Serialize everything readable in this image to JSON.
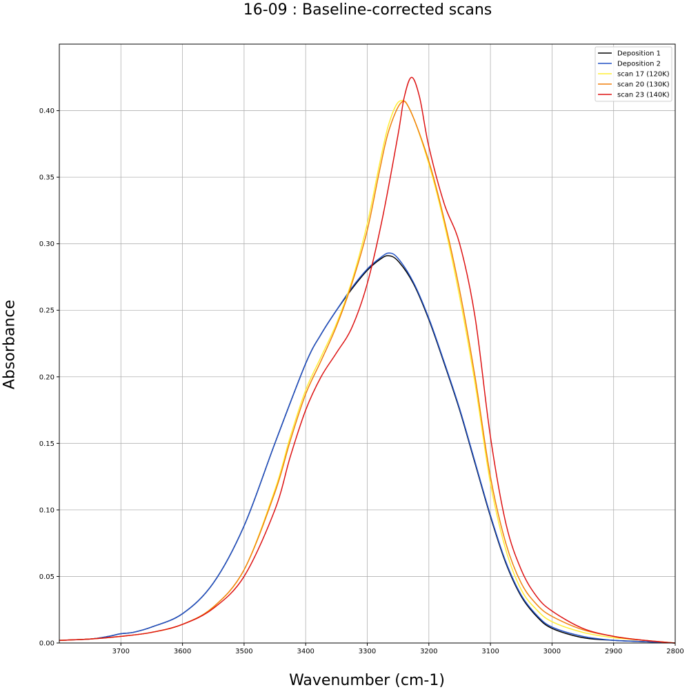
{
  "chart_data": {
    "type": "line",
    "title": "16-09 : Baseline-corrected scans",
    "xlabel": "Wavenumber (cm-1)",
    "ylabel": "Absorbance",
    "xlim": [
      3800,
      2800
    ],
    "ylim": [
      0,
      0.45
    ],
    "x_reversed": true,
    "grid": true,
    "legend_position": "top-right",
    "xticks": [
      3700,
      3600,
      3500,
      3400,
      3300,
      3200,
      3100,
      3000,
      2900,
      2800
    ],
    "yticks": [
      0.0,
      0.05,
      0.1,
      0.15,
      0.2,
      0.25,
      0.3,
      0.35,
      0.4
    ],
    "ytick_labels": [
      "0.00",
      "0.05",
      "0.10",
      "0.15",
      "0.20",
      "0.25",
      "0.30",
      "0.35",
      "0.40"
    ],
    "series": [
      {
        "name": "Deposition 1",
        "color": "#000000",
        "x": [
          3800,
          3750,
          3720,
          3700,
          3680,
          3650,
          3600,
          3550,
          3500,
          3450,
          3400,
          3375,
          3350,
          3325,
          3300,
          3280,
          3266,
          3250,
          3225,
          3200,
          3175,
          3150,
          3125,
          3100,
          3075,
          3050,
          3025,
          3000,
          2950,
          2900,
          2850,
          2800
        ],
        "y": [
          0.002,
          0.003,
          0.005,
          0.007,
          0.008,
          0.012,
          0.022,
          0.045,
          0.088,
          0.15,
          0.21,
          0.232,
          0.25,
          0.266,
          0.28,
          0.288,
          0.291,
          0.287,
          0.27,
          0.243,
          0.21,
          0.175,
          0.135,
          0.095,
          0.06,
          0.035,
          0.02,
          0.011,
          0.004,
          0.002,
          0.001,
          0.0
        ]
      },
      {
        "name": "Deposition 2",
        "color": "#1f4fc4",
        "x": [
          3800,
          3750,
          3720,
          3700,
          3680,
          3650,
          3600,
          3550,
          3500,
          3450,
          3400,
          3375,
          3350,
          3325,
          3300,
          3280,
          3265,
          3250,
          3225,
          3200,
          3175,
          3150,
          3125,
          3100,
          3075,
          3050,
          3025,
          3000,
          2950,
          2900,
          2850,
          2800
        ],
        "y": [
          0.002,
          0.003,
          0.005,
          0.007,
          0.008,
          0.012,
          0.022,
          0.045,
          0.088,
          0.15,
          0.21,
          0.232,
          0.25,
          0.267,
          0.281,
          0.289,
          0.293,
          0.289,
          0.271,
          0.244,
          0.211,
          0.176,
          0.136,
          0.096,
          0.061,
          0.036,
          0.021,
          0.012,
          0.005,
          0.002,
          0.001,
          0.0
        ]
      },
      {
        "name": "scan 17 (120K)",
        "color": "#ffee33",
        "x": [
          3800,
          3750,
          3700,
          3650,
          3600,
          3550,
          3500,
          3450,
          3425,
          3400,
          3375,
          3350,
          3325,
          3300,
          3280,
          3265,
          3248,
          3230,
          3200,
          3175,
          3150,
          3125,
          3100,
          3075,
          3050,
          3025,
          3000,
          2950,
          2900,
          2850,
          2800
        ],
        "y": [
          0.002,
          0.003,
          0.005,
          0.008,
          0.014,
          0.027,
          0.055,
          0.115,
          0.155,
          0.19,
          0.215,
          0.24,
          0.272,
          0.315,
          0.36,
          0.39,
          0.407,
          0.4,
          0.36,
          0.315,
          0.26,
          0.195,
          0.12,
          0.07,
          0.04,
          0.025,
          0.016,
          0.008,
          0.004,
          0.002,
          0.0
        ]
      },
      {
        "name": "scan 20 (130K)",
        "color": "#f07f0a",
        "x": [
          3800,
          3750,
          3700,
          3650,
          3600,
          3550,
          3500,
          3450,
          3425,
          3400,
          3375,
          3350,
          3325,
          3300,
          3280,
          3265,
          3245,
          3230,
          3200,
          3175,
          3150,
          3125,
          3100,
          3075,
          3050,
          3025,
          3000,
          2950,
          2900,
          2850,
          2800
        ],
        "y": [
          0.002,
          0.003,
          0.005,
          0.008,
          0.014,
          0.027,
          0.055,
          0.113,
          0.152,
          0.187,
          0.212,
          0.238,
          0.27,
          0.31,
          0.355,
          0.385,
          0.406,
          0.4,
          0.362,
          0.318,
          0.265,
          0.2,
          0.125,
          0.075,
          0.045,
          0.029,
          0.02,
          0.01,
          0.005,
          0.002,
          0.0
        ]
      },
      {
        "name": "scan 23 (140K)",
        "color": "#dd1111",
        "x": [
          3800,
          3750,
          3700,
          3650,
          3600,
          3550,
          3500,
          3450,
          3425,
          3400,
          3375,
          3350,
          3325,
          3300,
          3275,
          3250,
          3240,
          3228,
          3215,
          3200,
          3175,
          3150,
          3125,
          3100,
          3075,
          3050,
          3025,
          3000,
          2950,
          2900,
          2850,
          2800
        ],
        "y": [
          0.002,
          0.003,
          0.005,
          0.008,
          0.014,
          0.026,
          0.05,
          0.1,
          0.14,
          0.175,
          0.2,
          0.218,
          0.237,
          0.27,
          0.32,
          0.382,
          0.41,
          0.425,
          0.41,
          0.373,
          0.33,
          0.3,
          0.245,
          0.155,
          0.09,
          0.055,
          0.035,
          0.024,
          0.011,
          0.005,
          0.002,
          0.0
        ]
      }
    ]
  }
}
